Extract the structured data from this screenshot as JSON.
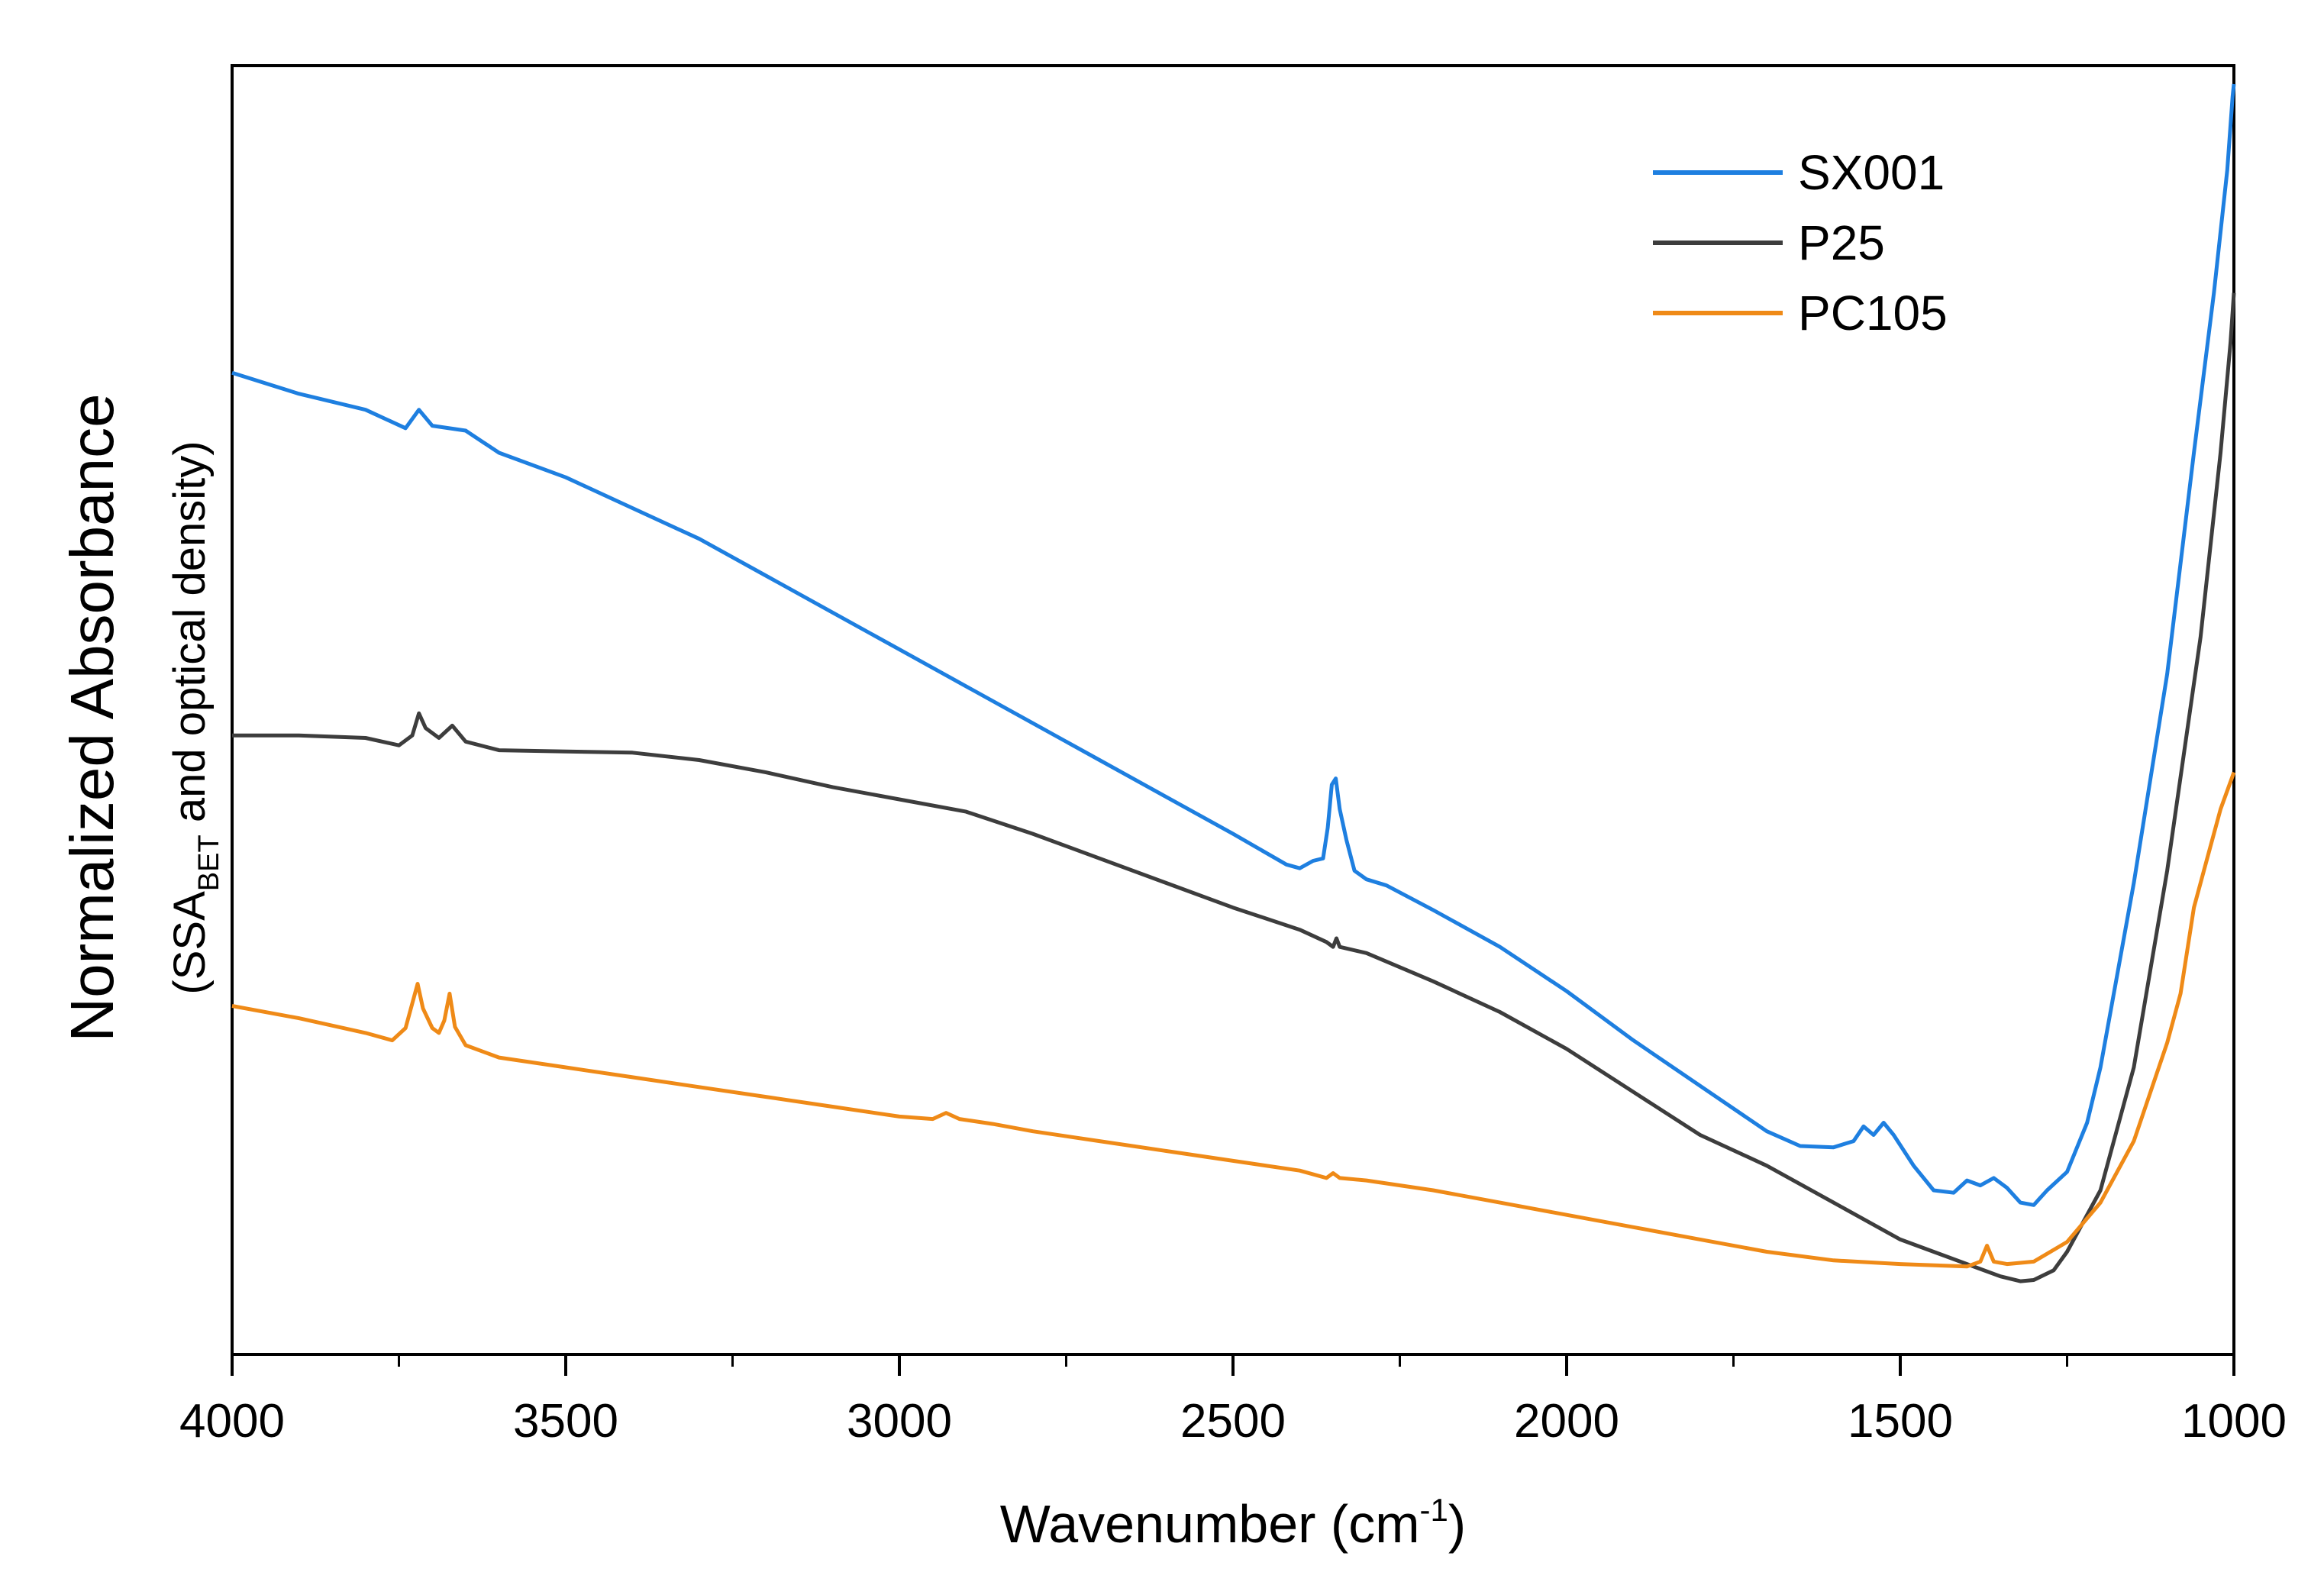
{
  "chart_data": {
    "type": "line",
    "xlabel": {
      "main": "Wavenumber (cm",
      "sup": "-1",
      "close": ")"
    },
    "ylabel": {
      "main": "Normalized Absorbance",
      "sub_prefix": "(SSA",
      "sub_subscript": "BET",
      "sub_suffix": " and optical density)"
    },
    "xlim": [
      4000,
      1000
    ],
    "ylim": [
      0,
      1
    ],
    "x_ticks": [
      4000,
      3500,
      3000,
      2500,
      2000,
      1500,
      1000
    ],
    "x_tick_labels": [
      "4000",
      "3500",
      "3000",
      "2500",
      "2000",
      "1500",
      "1000"
    ],
    "x_minor_ticks": [
      3750,
      3250,
      2750,
      2250,
      1750,
      1250
    ],
    "y_tick_labels": [],
    "grid": false,
    "legend_position": "top-right",
    "series": [
      {
        "name": "SX001",
        "color": "#1e7fe0",
        "points": [
          [
            4000,
            0.765
          ],
          [
            3900,
            0.748
          ],
          [
            3800,
            0.735
          ],
          [
            3740,
            0.72
          ],
          [
            3720,
            0.735
          ],
          [
            3700,
            0.722
          ],
          [
            3650,
            0.718
          ],
          [
            3600,
            0.7
          ],
          [
            3500,
            0.68
          ],
          [
            3400,
            0.655
          ],
          [
            3300,
            0.63
          ],
          [
            3200,
            0.6
          ],
          [
            3100,
            0.57
          ],
          [
            3000,
            0.54
          ],
          [
            2900,
            0.51
          ],
          [
            2800,
            0.48
          ],
          [
            2700,
            0.45
          ],
          [
            2600,
            0.42
          ],
          [
            2500,
            0.39
          ],
          [
            2420,
            0.365
          ],
          [
            2400,
            0.362
          ],
          [
            2380,
            0.368
          ],
          [
            2365,
            0.37
          ],
          [
            2358,
            0.395
          ],
          [
            2352,
            0.43
          ],
          [
            2346,
            0.435
          ],
          [
            2340,
            0.41
          ],
          [
            2330,
            0.385
          ],
          [
            2318,
            0.36
          ],
          [
            2300,
            0.353
          ],
          [
            2270,
            0.348
          ],
          [
            2200,
            0.328
          ],
          [
            2100,
            0.298
          ],
          [
            2000,
            0.262
          ],
          [
            1900,
            0.222
          ],
          [
            1800,
            0.185
          ],
          [
            1700,
            0.148
          ],
          [
            1650,
            0.136
          ],
          [
            1600,
            0.135
          ],
          [
            1570,
            0.14
          ],
          [
            1555,
            0.152
          ],
          [
            1540,
            0.145
          ],
          [
            1525,
            0.155
          ],
          [
            1510,
            0.145
          ],
          [
            1480,
            0.12
          ],
          [
            1450,
            0.1
          ],
          [
            1420,
            0.098
          ],
          [
            1400,
            0.108
          ],
          [
            1380,
            0.104
          ],
          [
            1360,
            0.11
          ],
          [
            1340,
            0.102
          ],
          [
            1320,
            0.09
          ],
          [
            1300,
            0.088
          ],
          [
            1280,
            0.1
          ],
          [
            1250,
            0.115
          ],
          [
            1220,
            0.155
          ],
          [
            1200,
            0.2
          ],
          [
            1150,
            0.35
          ],
          [
            1100,
            0.52
          ],
          [
            1060,
            0.7
          ],
          [
            1030,
            0.83
          ],
          [
            1010,
            0.93
          ],
          [
            1002,
            0.99
          ],
          [
            1000,
            1.0
          ]
        ]
      },
      {
        "name": "P25",
        "color": "#3d3d3d",
        "points": [
          [
            4000,
            0.47
          ],
          [
            3900,
            0.47
          ],
          [
            3800,
            0.468
          ],
          [
            3750,
            0.462
          ],
          [
            3730,
            0.47
          ],
          [
            3720,
            0.488
          ],
          [
            3710,
            0.476
          ],
          [
            3690,
            0.468
          ],
          [
            3670,
            0.478
          ],
          [
            3650,
            0.465
          ],
          [
            3600,
            0.458
          ],
          [
            3500,
            0.457
          ],
          [
            3400,
            0.456
          ],
          [
            3300,
            0.45
          ],
          [
            3200,
            0.44
          ],
          [
            3100,
            0.428
          ],
          [
            3000,
            0.418
          ],
          [
            2900,
            0.408
          ],
          [
            2800,
            0.39
          ],
          [
            2700,
            0.37
          ],
          [
            2600,
            0.35
          ],
          [
            2500,
            0.33
          ],
          [
            2400,
            0.312
          ],
          [
            2360,
            0.302
          ],
          [
            2350,
            0.298
          ],
          [
            2345,
            0.305
          ],
          [
            2340,
            0.298
          ],
          [
            2300,
            0.293
          ],
          [
            2200,
            0.27
          ],
          [
            2100,
            0.245
          ],
          [
            2000,
            0.215
          ],
          [
            1900,
            0.18
          ],
          [
            1800,
            0.145
          ],
          [
            1700,
            0.12
          ],
          [
            1600,
            0.09
          ],
          [
            1500,
            0.06
          ],
          [
            1400,
            0.04
          ],
          [
            1350,
            0.03
          ],
          [
            1320,
            0.026
          ],
          [
            1300,
            0.027
          ],
          [
            1270,
            0.035
          ],
          [
            1250,
            0.05
          ],
          [
            1200,
            0.1
          ],
          [
            1150,
            0.2
          ],
          [
            1100,
            0.36
          ],
          [
            1050,
            0.55
          ],
          [
            1020,
            0.7
          ],
          [
            1005,
            0.79
          ],
          [
            1000,
            0.83
          ]
        ]
      },
      {
        "name": "PC105",
        "color": "#ef8a17",
        "points": [
          [
            4000,
            0.25
          ],
          [
            3900,
            0.24
          ],
          [
            3800,
            0.228
          ],
          [
            3760,
            0.222
          ],
          [
            3740,
            0.232
          ],
          [
            3722,
            0.268
          ],
          [
            3714,
            0.248
          ],
          [
            3700,
            0.232
          ],
          [
            3690,
            0.228
          ],
          [
            3682,
            0.238
          ],
          [
            3674,
            0.26
          ],
          [
            3666,
            0.233
          ],
          [
            3650,
            0.218
          ],
          [
            3600,
            0.208
          ],
          [
            3500,
            0.2
          ],
          [
            3400,
            0.192
          ],
          [
            3300,
            0.184
          ],
          [
            3200,
            0.176
          ],
          [
            3100,
            0.168
          ],
          [
            3000,
            0.16
          ],
          [
            2950,
            0.158
          ],
          [
            2930,
            0.163
          ],
          [
            2910,
            0.158
          ],
          [
            2860,
            0.154
          ],
          [
            2800,
            0.148
          ],
          [
            2700,
            0.14
          ],
          [
            2600,
            0.132
          ],
          [
            2500,
            0.124
          ],
          [
            2400,
            0.116
          ],
          [
            2360,
            0.11
          ],
          [
            2350,
            0.114
          ],
          [
            2340,
            0.11
          ],
          [
            2300,
            0.108
          ],
          [
            2200,
            0.1
          ],
          [
            2100,
            0.09
          ],
          [
            2000,
            0.08
          ],
          [
            1900,
            0.07
          ],
          [
            1800,
            0.06
          ],
          [
            1700,
            0.05
          ],
          [
            1600,
            0.043
          ],
          [
            1500,
            0.04
          ],
          [
            1400,
            0.038
          ],
          [
            1380,
            0.042
          ],
          [
            1370,
            0.055
          ],
          [
            1360,
            0.042
          ],
          [
            1340,
            0.04
          ],
          [
            1300,
            0.042
          ],
          [
            1250,
            0.058
          ],
          [
            1200,
            0.09
          ],
          [
            1150,
            0.14
          ],
          [
            1100,
            0.22
          ],
          [
            1080,
            0.26
          ],
          [
            1060,
            0.33
          ],
          [
            1040,
            0.37
          ],
          [
            1020,
            0.41
          ],
          [
            1000,
            0.44
          ]
        ]
      }
    ]
  }
}
